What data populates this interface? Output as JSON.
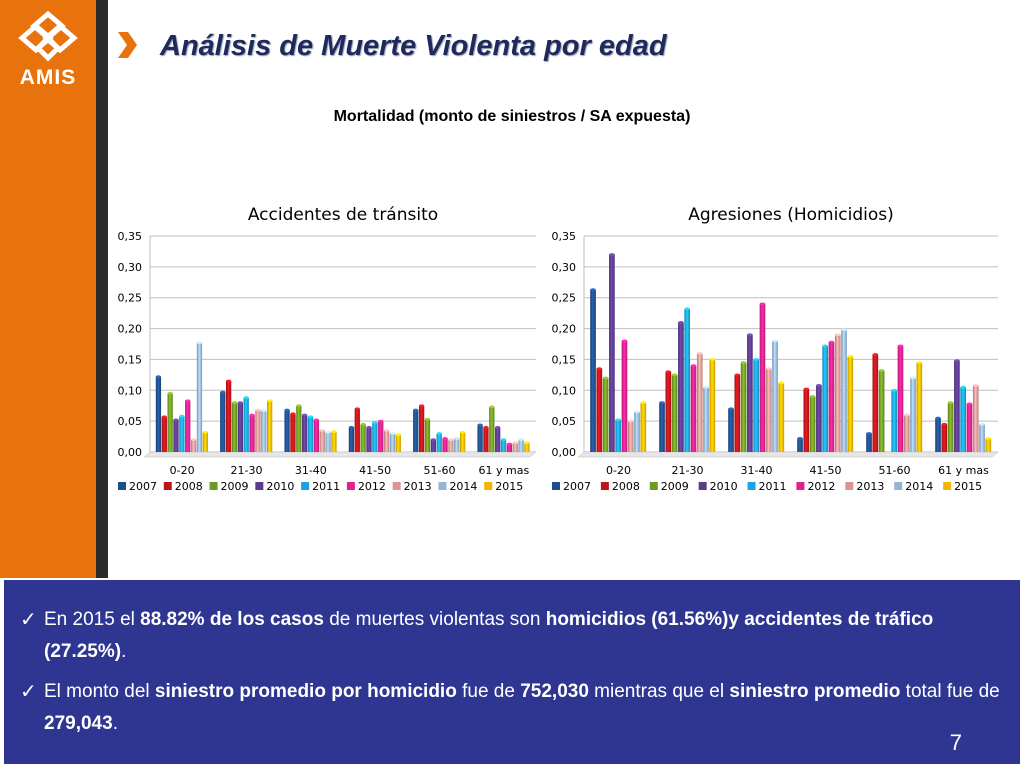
{
  "brand": {
    "logo_text": "AMIS",
    "sidebar_color": "#e8720c",
    "panel_color": "#2f3691"
  },
  "title": "Análisis de Muerte Violenta por edad",
  "subtitle": "Mortalidad (monto de siniestros / SA expuesta)",
  "icons": {
    "title_marker": "chevron-right-icon",
    "bullet_marker": "check-icon"
  },
  "chart_data": [
    {
      "type": "bar",
      "title": "Accidentes de tránsito",
      "categories": [
        "0-20",
        "21-30",
        "31-40",
        "41-50",
        "51-60",
        "61 y mas"
      ],
      "ylim": [
        0,
        0.35
      ],
      "yticks": [
        "0,00",
        "0,05",
        "0,10",
        "0,15",
        "0,20",
        "0,25",
        "0,30",
        "0,35"
      ],
      "legend_position": "bottom",
      "grid": true,
      "series": [
        {
          "name": "2007",
          "color": "#1f4e8c",
          "values": [
            0.122,
            0.097,
            0.068,
            0.04,
            0.068,
            0.044
          ]
        },
        {
          "name": "2008",
          "color": "#c0141b",
          "values": [
            0.057,
            0.115,
            0.062,
            0.07,
            0.075,
            0.04
          ]
        },
        {
          "name": "2009",
          "color": "#6f9a22",
          "values": [
            0.095,
            0.08,
            0.075,
            0.045,
            0.053,
            0.073
          ]
        },
        {
          "name": "2010",
          "color": "#5a3b8c",
          "values": [
            0.052,
            0.08,
            0.06,
            0.04,
            0.02,
            0.04
          ]
        },
        {
          "name": "2011",
          "color": "#1aa3e0",
          "values": [
            0.058,
            0.088,
            0.057,
            0.048,
            0.03,
            0.02
          ]
        },
        {
          "name": "2012",
          "color": "#e0218a",
          "values": [
            0.083,
            0.06,
            0.052,
            0.05,
            0.022,
            0.013
          ]
        },
        {
          "name": "2013",
          "color": "#d99694",
          "values": [
            0.02,
            0.068,
            0.035,
            0.035,
            0.02,
            0.015
          ]
        },
        {
          "name": "2014",
          "color": "#95b3d7",
          "values": [
            0.177,
            0.067,
            0.032,
            0.03,
            0.022,
            0.02
          ]
        },
        {
          "name": "2015",
          "color": "#f5b400",
          "values": [
            0.032,
            0.083,
            0.033,
            0.028,
            0.032,
            0.015
          ]
        }
      ]
    },
    {
      "type": "bar",
      "title": "Agresiones (Homicidios)",
      "categories": [
        "0-20",
        "21-30",
        "31-40",
        "41-50",
        "51-60",
        "61 y mas"
      ],
      "ylim": [
        0,
        0.35
      ],
      "yticks": [
        "0,00",
        "0,05",
        "0,10",
        "0,15",
        "0,20",
        "0,25",
        "0,30",
        "0,35"
      ],
      "legend_position": "bottom",
      "grid": true,
      "series": [
        {
          "name": "2007",
          "color": "#1f4e8c",
          "values": [
            0.263,
            0.08,
            0.07,
            0.022,
            0.03,
            0.055
          ]
        },
        {
          "name": "2008",
          "color": "#c0141b",
          "values": [
            0.135,
            0.13,
            0.125,
            0.102,
            0.158,
            0.045
          ]
        },
        {
          "name": "2009",
          "color": "#6f9a22",
          "values": [
            0.12,
            0.125,
            0.145,
            0.09,
            0.132,
            0.08
          ]
        },
        {
          "name": "2010",
          "color": "#5a3b8c",
          "values": [
            0.32,
            0.21,
            0.19,
            0.108,
            0.0,
            0.148
          ]
        },
        {
          "name": "2011",
          "color": "#1aa3e0",
          "values": [
            0.052,
            0.232,
            0.15,
            0.172,
            0.1,
            0.105
          ]
        },
        {
          "name": "2012",
          "color": "#e0218a",
          "values": [
            0.18,
            0.14,
            0.24,
            0.178,
            0.172,
            0.078
          ]
        },
        {
          "name": "2013",
          "color": "#d99694",
          "values": [
            0.05,
            0.16,
            0.135,
            0.19,
            0.06,
            0.108
          ]
        },
        {
          "name": "2014",
          "color": "#95b3d7",
          "values": [
            0.065,
            0.105,
            0.18,
            0.198,
            0.12,
            0.045
          ]
        },
        {
          "name": "2015",
          "color": "#f5b400",
          "values": [
            0.08,
            0.15,
            0.112,
            0.155,
            0.145,
            0.022
          ]
        }
      ]
    }
  ],
  "bullets": {
    "b1": {
      "p1": "En 2015 el ",
      "p2": "88.82% de los casos",
      "p3": " de muertes violentas son ",
      "p4": "homicidios (61.56%)y accidentes de tráfico (27.25%)",
      "p5": "."
    },
    "b2": {
      "p1": "El monto del ",
      "p2": "siniestro promedio por homicidio",
      "p3": " fue de ",
      "p4": "752,030",
      "p5": " mientras que el ",
      "p6": "siniestro promedio",
      "p7": " total fue de  ",
      "p8": "279,043",
      "p9": "."
    }
  },
  "page_number": "7"
}
